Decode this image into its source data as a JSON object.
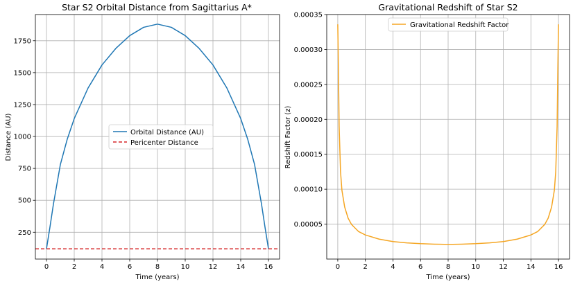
{
  "chart_data": [
    {
      "type": "line",
      "title": "Star S2 Orbital Distance from Sagittarius A*",
      "xlabel": "Time (years)",
      "ylabel": "Distance (AU)",
      "xlim": [
        -0.8,
        16.8
      ],
      "ylim": [
        40,
        1955
      ],
      "xticks": [
        0,
        2,
        4,
        6,
        8,
        10,
        12,
        14,
        16
      ],
      "yticks": [
        250,
        500,
        750,
        1000,
        1250,
        1500,
        1750
      ],
      "grid": true,
      "legend_position": "center",
      "series": [
        {
          "name": "Orbital Distance (AU)",
          "color": "#1f77b4",
          "style": "solid",
          "x": [
            0,
            0.25,
            0.5,
            1,
            1.5,
            2,
            3,
            4,
            5,
            6,
            7,
            8,
            9,
            10,
            11,
            12,
            13,
            14,
            14.5,
            15,
            15.5,
            15.75,
            16
          ],
          "y": [
            120,
            290,
            470,
            780,
            980,
            1140,
            1380,
            1560,
            1690,
            1790,
            1855,
            1880,
            1855,
            1790,
            1690,
            1560,
            1380,
            1140,
            980,
            780,
            470,
            290,
            120
          ]
        },
        {
          "name": "Pericenter Distance",
          "color": "#d62728",
          "style": "dashed",
          "x": [
            -0.8,
            16.8
          ],
          "y": [
            120,
            120
          ]
        }
      ]
    },
    {
      "type": "line",
      "title": "Gravitational Redshift of Star S2",
      "xlabel": "Time (years)",
      "ylabel": "Redshift Factor (z)",
      "xlim": [
        -0.8,
        16.8
      ],
      "ylim": [
        0,
        0.00035
      ],
      "xticks": [
        0,
        2,
        4,
        6,
        8,
        10,
        12,
        14,
        16
      ],
      "yticks": [
        5e-05,
        0.0001,
        0.00015,
        0.0002,
        0.00025,
        0.0003,
        0.00035
      ],
      "ytick_labels": [
        "0.00005",
        "0.00010",
        "0.00015",
        "0.00020",
        "0.00025",
        "0.00030",
        "0.00035"
      ],
      "grid": true,
      "legend_position": "upper center",
      "series": [
        {
          "name": "Gravitational Redshift Factor",
          "color": "#f5a623",
          "style": "solid",
          "x": [
            0,
            0.05,
            0.1,
            0.2,
            0.3,
            0.5,
            0.75,
            1,
            1.5,
            2,
            3,
            4,
            5,
            6,
            7,
            8,
            9,
            10,
            11,
            12,
            13,
            14,
            14.5,
            15,
            15.25,
            15.5,
            15.7,
            15.8,
            15.9,
            15.95,
            16
          ],
          "y": [
            0.000336,
            0.00027,
            0.00019,
            0.000125,
            9.85e-05,
            7.45e-05,
            5.85e-05,
            4.95e-05,
            3.95e-05,
            3.45e-05,
            2.85e-05,
            2.5e-05,
            2.32e-05,
            2.2e-05,
            2.13e-05,
            2.1e-05,
            2.13e-05,
            2.2e-05,
            2.32e-05,
            2.5e-05,
            2.85e-05,
            3.45e-05,
            3.95e-05,
            4.95e-05,
            5.85e-05,
            7.45e-05,
            9.85e-05,
            0.000125,
            0.00019,
            0.00027,
            0.000336
          ]
        }
      ]
    }
  ]
}
